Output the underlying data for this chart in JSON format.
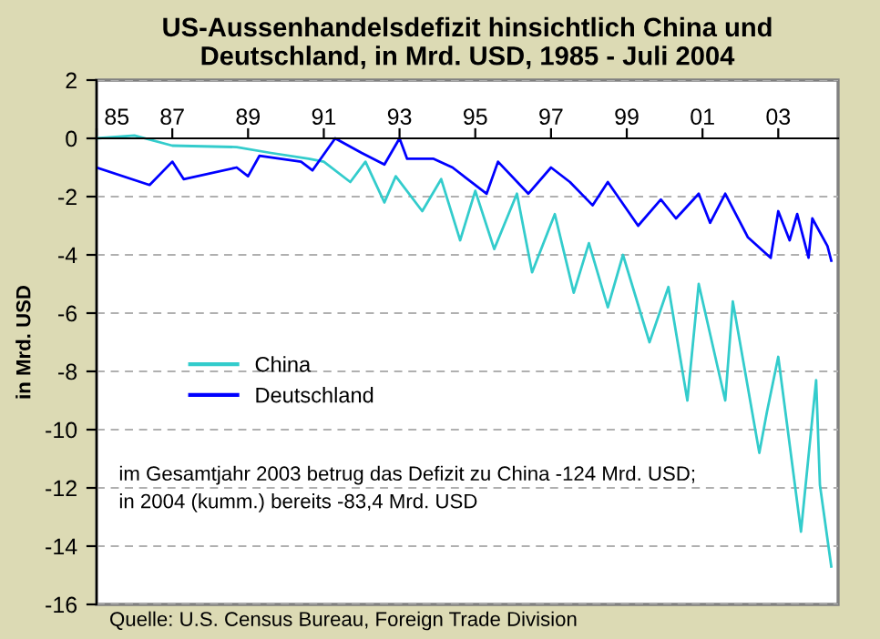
{
  "chart_data": {
    "type": "line",
    "title": "US-Aussenhandelsdefizit hinsichtlich China und\nDeutschland, in Mrd. USD, 1985 - Juli 2004",
    "ylabel": "in Mrd. USD",
    "xlim": [
      1985,
      2004.58
    ],
    "xticks": [
      {
        "value": 1985,
        "label": "85"
      },
      {
        "value": 1987,
        "label": "87"
      },
      {
        "value": 1989,
        "label": "89"
      },
      {
        "value": 1991,
        "label": "91"
      },
      {
        "value": 1993,
        "label": "93"
      },
      {
        "value": 1995,
        "label": "95"
      },
      {
        "value": 1997,
        "label": "97"
      },
      {
        "value": 1999,
        "label": "99"
      },
      {
        "value": 2001,
        "label": "01"
      },
      {
        "value": 2003,
        "label": "03"
      }
    ],
    "ylim": [
      -16,
      2
    ],
    "yticks": [
      -16,
      -14,
      -12,
      -10,
      -8,
      -6,
      -4,
      -2,
      0,
      2
    ],
    "grid": "y",
    "legend": "center left",
    "marker": "none",
    "line_style": "solid",
    "series": [
      {
        "name": "China",
        "color": "#33cccc",
        "x": [
          1985.0,
          1986.0,
          1987.0,
          1988.7,
          1989.6,
          1990.6,
          1991.0,
          1991.7,
          1992.1,
          1992.6,
          1992.9,
          1993.6,
          1994.1,
          1994.6,
          1995.0,
          1995.5,
          1996.1,
          1996.5,
          1997.1,
          1997.6,
          1998.0,
          1998.5,
          1998.9,
          1999.6,
          2000.1,
          2000.6,
          2000.9,
          2001.6,
          2001.8,
          2002.5,
          2002.7,
          2003.0,
          2003.6,
          2004.0,
          2004.1,
          2004.4
        ],
        "values": [
          0,
          0.1,
          -0.25,
          -0.3,
          -0.5,
          -0.7,
          -0.8,
          -1.5,
          -0.8,
          -2.2,
          -1.3,
          -2.5,
          -1.4,
          -3.5,
          -1.8,
          -3.8,
          -1.9,
          -4.6,
          -2.6,
          -5.3,
          -3.6,
          -5.8,
          -4.0,
          -7.0,
          -5.1,
          -9.0,
          -5.0,
          -9.0,
          -5.6,
          -10.8,
          -9.4,
          -7.5,
          -13.5,
          -8.3,
          -11.9,
          -14.7
        ]
      },
      {
        "name": "Deutschland",
        "color": "#0000ff",
        "x": [
          1985.0,
          1986.4,
          1987.0,
          1987.3,
          1988.7,
          1989.0,
          1989.3,
          1990.4,
          1990.7,
          1991.3,
          1992.0,
          1992.6,
          1993.0,
          1993.2,
          1993.9,
          1994.4,
          1995.3,
          1995.6,
          1996.4,
          1997.0,
          1997.5,
          1998.1,
          1998.5,
          1999.3,
          1999.9,
          2000.3,
          2000.9,
          2001.2,
          2001.6,
          2002.2,
          2002.8,
          2003.0,
          2003.3,
          2003.5,
          2003.8,
          2003.9,
          2004.3,
          2004.4
        ],
        "values": [
          -1.0,
          -1.6,
          -0.8,
          -1.4,
          -1.0,
          -1.3,
          -0.6,
          -0.8,
          -1.1,
          0,
          -0.5,
          -0.9,
          0,
          -0.7,
          -0.7,
          -1.0,
          -1.9,
          -0.8,
          -1.9,
          -1.0,
          -1.5,
          -2.3,
          -1.5,
          -3.0,
          -2.1,
          -2.75,
          -1.9,
          -2.9,
          -1.9,
          -3.4,
          -4.1,
          -2.5,
          -3.5,
          -2.6,
          -4.1,
          -2.75,
          -3.7,
          -4.2
        ]
      }
    ],
    "annotations": [
      "im Gesamtjahr 2003 betrug das Defizit zu China -124 Mrd. USD;\nin 2004 (kumm.) bereits -83,4 Mrd. USD",
      "Quelle: U.S. Census Bureau, Foreign Trade Division"
    ]
  }
}
